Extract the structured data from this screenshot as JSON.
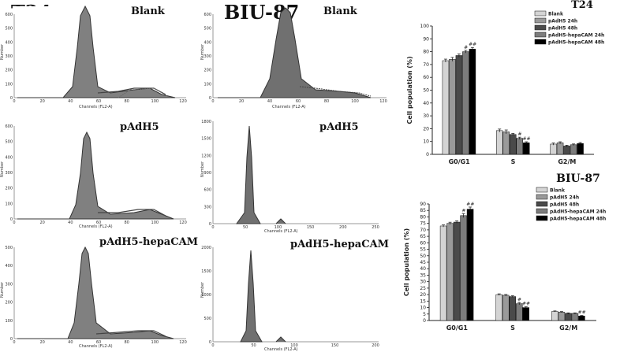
{
  "labels": {
    "t24": "T24",
    "biu87": "BIU-87",
    "blank": "Blank",
    "padh5": "pAdH5",
    "padh5_hepacam": "pAdH5-hepaCAM",
    "hist_xlabel": "Channels (FL2-A)",
    "hist_ylabel": "Number"
  },
  "histograms": {
    "t24": {
      "xticks": [
        "0",
        "20",
        "40",
        "60",
        "80",
        "100",
        "120"
      ],
      "yticks": {
        "blank": [
          "0",
          "100",
          "200",
          "300",
          "400",
          "500",
          "600"
        ],
        "padh5": [
          "0",
          "100",
          "200",
          "300",
          "400",
          "500",
          "600"
        ],
        "padh5_hepacam": [
          "0",
          "100",
          "200",
          "300",
          "400",
          "500"
        ]
      }
    },
    "biu87": {
      "xticks": {
        "blank": [
          "0",
          "20",
          "40",
          "60",
          "80",
          "100",
          "120"
        ],
        "padh5": [
          "0",
          "50",
          "100",
          "150",
          "200",
          "250"
        ],
        "padh5_hepacam": [
          "0",
          "50",
          "100",
          "150",
          "200"
        ]
      },
      "yticks": {
        "blank": [
          "0",
          "100",
          "200",
          "300",
          "400",
          "500",
          "600"
        ],
        "padh5": [
          "0",
          "300",
          "600",
          "900",
          "1200",
          "1500",
          "1800"
        ],
        "padh5_hepacam": [
          "0",
          "500",
          "1000",
          "1500",
          "2000"
        ]
      }
    }
  },
  "colors": {
    "blank": "#d4d4d4",
    "padh5_24h": "#9a9a9a",
    "padh5_48h": "#4a4a4a",
    "hepacam_24h": "#7c7c7c",
    "hepacam_48h": "#000000",
    "histogram_fill": "#808080"
  },
  "chart_data": [
    {
      "type": "bar",
      "title": "T24",
      "xlabel": "",
      "ylabel": "Cell population (%)",
      "ylim": [
        0,
        100
      ],
      "yticks": [
        "0",
        "10",
        "20",
        "30",
        "40",
        "50",
        "60",
        "70",
        "80",
        "90",
        "100"
      ],
      "categories": [
        "G0/G1",
        "S",
        "G2/M"
      ],
      "series": [
        {
          "name": "Blank",
          "values": [
            73,
            18.5,
            8
          ]
        },
        {
          "name": "pAdH5 24h",
          "values": [
            74,
            17.5,
            9
          ]
        },
        {
          "name": "pAdH5 48h",
          "values": [
            77,
            15.5,
            6.5
          ]
        },
        {
          "name": "pAdH5-hepaCAM 24h",
          "values": [
            80,
            12.5,
            7.5
          ]
        },
        {
          "name": "pAdH5-hepaCAM 48h",
          "values": [
            82,
            9,
            8.5
          ]
        }
      ],
      "errors": [
        [
          1.2,
          1.2,
          0.8
        ],
        [
          1.5,
          1.5,
          0.8
        ],
        [
          1.2,
          0.8,
          0.6
        ],
        [
          1.0,
          0.9,
          0.6
        ],
        [
          1.3,
          0.8,
          0.7
        ]
      ],
      "annotations": [
        {
          "series": 3,
          "category": 0,
          "text": "#"
        },
        {
          "series": 4,
          "category": 0,
          "text": "##"
        },
        {
          "series": 3,
          "category": 1,
          "text": "#"
        },
        {
          "series": 4,
          "category": 1,
          "text": "##"
        }
      ]
    },
    {
      "type": "bar",
      "title": "BIU-87",
      "xlabel": "",
      "ylabel": "Cell population (%)",
      "ylim": [
        0,
        90
      ],
      "yticks": [
        "0",
        "5",
        "10",
        "15",
        "20",
        "25",
        "30",
        "35",
        "40",
        "45",
        "50",
        "55",
        "60",
        "65",
        "70",
        "75",
        "80",
        "85",
        "90"
      ],
      "categories": [
        "G0/G1",
        "S",
        "G2/M"
      ],
      "series": [
        {
          "name": "Blank",
          "values": [
            73,
            20,
            7
          ]
        },
        {
          "name": "pAdH5 24h",
          "values": [
            75,
            19.5,
            6.5
          ]
        },
        {
          "name": "pAdH5 48h",
          "values": [
            76,
            18.5,
            5.5
          ]
        },
        {
          "name": "pAdH5-hepaCAM 24h",
          "values": [
            81,
            13,
            5.5
          ]
        },
        {
          "name": "pAdH5-hepaCAM 48h",
          "values": [
            86,
            10,
            3.5
          ]
        }
      ],
      "errors": [
        [
          0.8,
          0.6,
          0.4
        ],
        [
          0.9,
          0.6,
          0.4
        ],
        [
          0.9,
          0.6,
          0.4
        ],
        [
          1.5,
          0.8,
          0.4
        ],
        [
          1.6,
          0.6,
          0.4
        ]
      ],
      "annotations": [
        {
          "series": 3,
          "category": 0,
          "text": "#"
        },
        {
          "series": 4,
          "category": 0,
          "text": "##"
        },
        {
          "series": 3,
          "category": 1,
          "text": "#"
        },
        {
          "series": 4,
          "category": 1,
          "text": "##"
        },
        {
          "series": 4,
          "category": 2,
          "text": "##"
        }
      ]
    }
  ]
}
